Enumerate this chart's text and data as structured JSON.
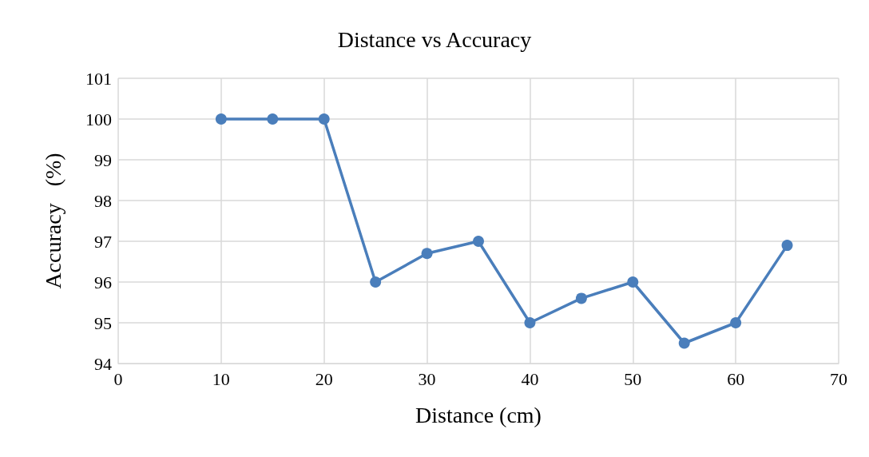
{
  "chart_data": {
    "type": "line",
    "title": "Distance vs Accuracy",
    "xlabel": "Distance (cm)",
    "ylabel": "Accuracy   (%)",
    "x": [
      10,
      15,
      20,
      25,
      30,
      35,
      40,
      45,
      50,
      55,
      60,
      65
    ],
    "series": [
      {
        "color": "#4a7ebb",
        "values": [
          100,
          100,
          100,
          96,
          96.7,
          97,
          95,
          95.6,
          96,
          94.5,
          95,
          96.9
        ]
      }
    ],
    "xlim": [
      0,
      70
    ],
    "xticks": [
      0,
      10,
      20,
      30,
      40,
      50,
      60,
      70
    ],
    "ylim": [
      94,
      101
    ],
    "yticks": [
      94,
      95,
      96,
      97,
      98,
      99,
      100,
      101
    ],
    "grid": true,
    "marker": "circle",
    "line_style": "solid"
  }
}
